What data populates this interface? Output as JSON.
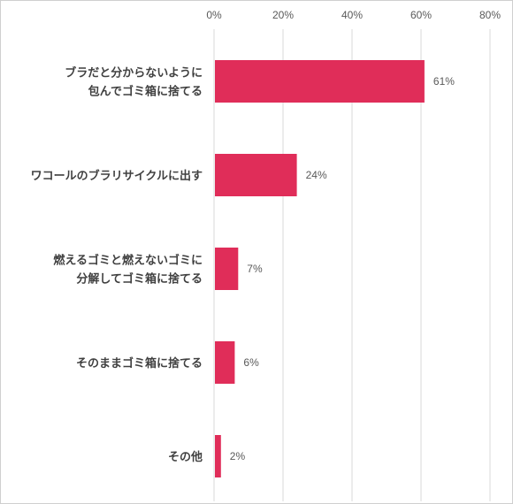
{
  "chart_data": {
    "type": "bar",
    "orientation": "horizontal",
    "categories": [
      [
        "ブラだと分からないように",
        "包んでゴミ箱に捨てる"
      ],
      [
        "ワコールのブラリサイクルに出す"
      ],
      [
        "燃えるゴミと燃えないゴミに",
        "分解してゴミ箱に捨てる"
      ],
      [
        "そのままゴミ箱に捨てる"
      ],
      [
        "その他"
      ]
    ],
    "values": [
      61,
      24,
      7,
      6,
      2
    ],
    "value_labels": [
      "61%",
      "24%",
      "7%",
      "6%",
      "2%"
    ],
    "xlim": [
      0,
      80
    ],
    "xticks": [
      0,
      20,
      40,
      60,
      80
    ],
    "xtick_labels": [
      "0%",
      "20%",
      "40%",
      "60%",
      "80%"
    ],
    "tick_position": "top",
    "grid": true,
    "legend": "none",
    "bar_color": "#e02d59",
    "grid_color": "#d9d9d9"
  }
}
